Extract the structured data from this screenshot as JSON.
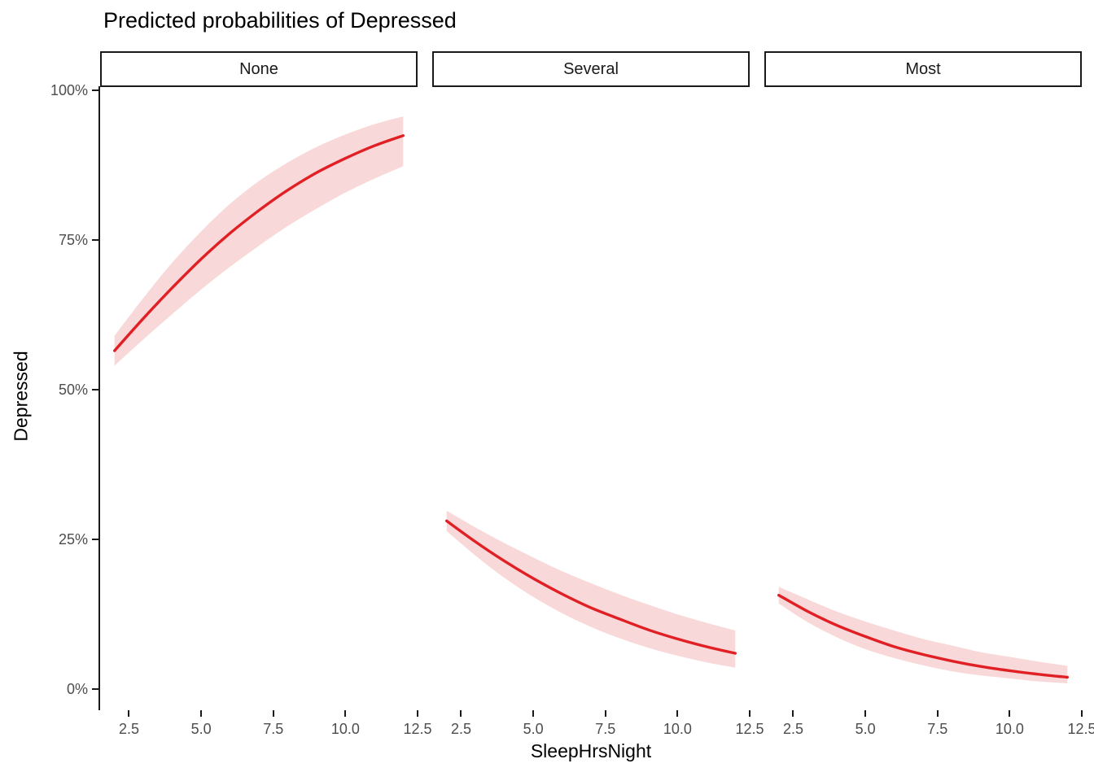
{
  "chart_data": {
    "type": "line",
    "title": "Predicted probabilities of Depressed",
    "xlabel": "SleepHrsNight",
    "ylabel": "Depressed",
    "grid": false,
    "legend": "none",
    "facet_labels": [
      "None",
      "Several",
      "Most"
    ],
    "x_ticks": [
      2.5,
      5.0,
      7.5,
      10.0,
      12.5
    ],
    "x_tick_labels": [
      "2.5",
      "5.0",
      "7.5",
      "10.0",
      "12.5"
    ],
    "y_ticks_pct": [
      0,
      25,
      50,
      75,
      100
    ],
    "y_tick_labels": [
      "0%",
      "25%",
      "50%",
      "75%",
      "100%"
    ],
    "xlim": [
      1.5,
      12.5
    ],
    "ylim_pct": [
      -3.5,
      100.5
    ],
    "line_color": "#E02025",
    "ribbon_color": "#F8D8D8",
    "x": [
      2,
      3,
      4,
      5,
      6,
      7,
      8,
      9,
      10,
      11,
      12
    ],
    "facets": [
      {
        "label": "None",
        "predicted_pct": [
          56.5,
          61.9,
          67.0,
          71.8,
          76.1,
          79.9,
          83.3,
          86.2,
          88.6,
          90.7,
          92.4
        ],
        "conf_low_pct": [
          54.0,
          58.4,
          62.6,
          66.7,
          70.5,
          74.0,
          77.3,
          80.2,
          82.9,
          85.2,
          87.3
        ],
        "conf_high_pct": [
          59.0,
          65.3,
          71.2,
          76.4,
          81.0,
          84.8,
          87.9,
          90.5,
          92.6,
          94.3,
          95.6
        ]
      },
      {
        "label": "Several",
        "predicted_pct": [
          28.1,
          24.6,
          21.4,
          18.5,
          15.9,
          13.6,
          11.7,
          9.9,
          8.4,
          7.1,
          6.0
        ],
        "conf_low_pct": [
          26.4,
          22.3,
          18.6,
          15.4,
          12.7,
          10.4,
          8.5,
          6.9,
          5.6,
          4.5,
          3.6
        ],
        "conf_high_pct": [
          29.8,
          27.0,
          24.4,
          22.0,
          19.7,
          17.7,
          15.8,
          14.1,
          12.5,
          11.1,
          9.8
        ]
      },
      {
        "label": "Most",
        "predicted_pct": [
          15.7,
          13.0,
          10.7,
          8.8,
          7.1,
          5.8,
          4.7,
          3.8,
          3.1,
          2.5,
          2.0
        ],
        "conf_low_pct": [
          14.3,
          11.2,
          8.7,
          6.7,
          5.2,
          4.0,
          3.0,
          2.3,
          1.8,
          1.3,
          1.0
        ],
        "conf_high_pct": [
          17.1,
          15.0,
          13.0,
          11.3,
          9.8,
          8.4,
          7.3,
          6.2,
          5.4,
          4.6,
          3.9
        ]
      }
    ]
  }
}
